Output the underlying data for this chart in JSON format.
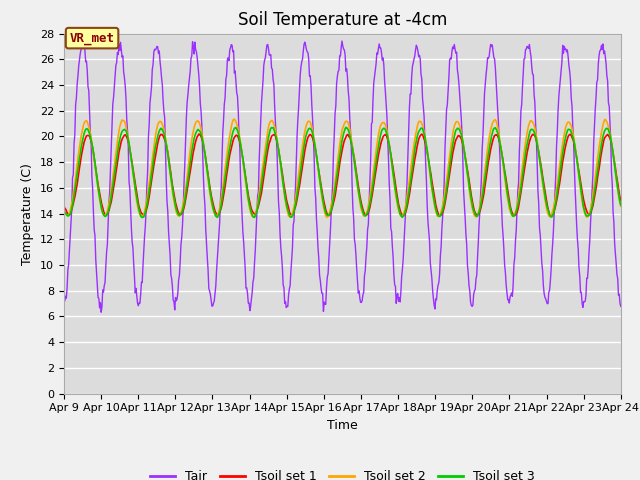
{
  "title": "Soil Temperature at -4cm",
  "xlabel": "Time",
  "ylabel": "Temperature (C)",
  "xlim_days": [
    9,
    24
  ],
  "ylim": [
    0,
    28
  ],
  "yticks": [
    0,
    2,
    4,
    6,
    8,
    10,
    12,
    14,
    16,
    18,
    20,
    22,
    24,
    26,
    28
  ],
  "xtick_labels": [
    "Apr 9",
    "Apr 10",
    "Apr 11",
    "Apr 12",
    "Apr 13",
    "Apr 14",
    "Apr 15",
    "Apr 16",
    "Apr 17",
    "Apr 18",
    "Apr 19",
    "Apr 20",
    "Apr 21",
    "Apr 22",
    "Apr 23",
    "Apr 24"
  ],
  "annotation_text": "VR_met",
  "annotation_facecolor": "#FFFFA0",
  "annotation_edgecolor": "#8B4513",
  "annotation_textcolor": "#8B0000",
  "series_colors": {
    "Tair": "#9B30FF",
    "Tsoil_set1": "#FF0000",
    "Tsoil_set2": "#FFA500",
    "Tsoil_set3": "#00CC00"
  },
  "series_labels": [
    "Tair",
    "Tsoil set 1",
    "Tsoil set 2",
    "Tsoil set 3"
  ],
  "fig_facecolor": "#F0F0F0",
  "plot_background": "#DCDCDC",
  "grid_color": "#FFFFFF",
  "title_fontsize": 12,
  "axis_fontsize": 9,
  "tick_fontsize": 8,
  "legend_fontsize": 9
}
